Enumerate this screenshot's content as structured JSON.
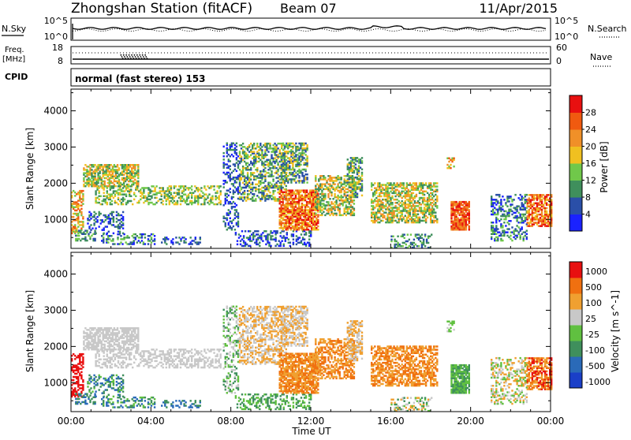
{
  "header": {
    "station": "Zhongshan Station (fitACF)",
    "beam": "Beam 07",
    "date": "11/Apr/2015"
  },
  "noise_panel": {
    "left_label": "N.Sky",
    "right_label": "N.Search",
    "left_ticks": [
      "10^5",
      "10^0"
    ],
    "right_ticks": [
      "10^5",
      "10^0"
    ]
  },
  "freq_panel": {
    "left_label_line1": "Freq.",
    "left_label_line2": "[MHz]",
    "left_ticks": [
      "18",
      "8"
    ],
    "right_label": "Nave",
    "right_ticks": [
      "60",
      "0"
    ]
  },
  "cpid_panel": {
    "label": "CPID",
    "text": "normal (fast stereo) 153"
  },
  "chart_data": [
    {
      "type": "heatmap",
      "name": "Power",
      "ylabel": "Slant Range [km]",
      "ylim": [
        200,
        4600
      ],
      "yticks": [
        1000,
        2000,
        3000,
        4000
      ],
      "colorbar_label": "Power [dB]",
      "colorbar_ticks": [
        4,
        8,
        12,
        16,
        20,
        24,
        28
      ],
      "colorbar_range": [
        0,
        32
      ],
      "colorbar_colors": [
        "#1a22ff",
        "#2a4fa8",
        "#3f8f5c",
        "#70c84a",
        "#f0c020",
        "#f09028",
        "#f05a10",
        "#e81010"
      ]
    },
    {
      "type": "heatmap",
      "name": "Velocity",
      "ylabel": "Slant Range [km]",
      "ylim": [
        200,
        4600
      ],
      "yticks": [
        1000,
        2000,
        3000,
        4000
      ],
      "colorbar_label": "Velocity [m s^-1]",
      "colorbar_ticks": [
        "1000",
        "500",
        "100",
        "25",
        "-25",
        "-100",
        "-500",
        "-1000"
      ],
      "colorbar_colors": [
        "#1a3fc8",
        "#2a6ab8",
        "#3f8f5c",
        "#60c040",
        "#c8c8c8",
        "#f0a030",
        "#f07010",
        "#e81010"
      ]
    }
  ],
  "x_axis": {
    "label": "Time UT",
    "range_hours": [
      0,
      24
    ],
    "ticks": [
      "00:00",
      "04:00",
      "08:00",
      "12:00",
      "16:00",
      "20:00",
      "00:00"
    ]
  }
}
